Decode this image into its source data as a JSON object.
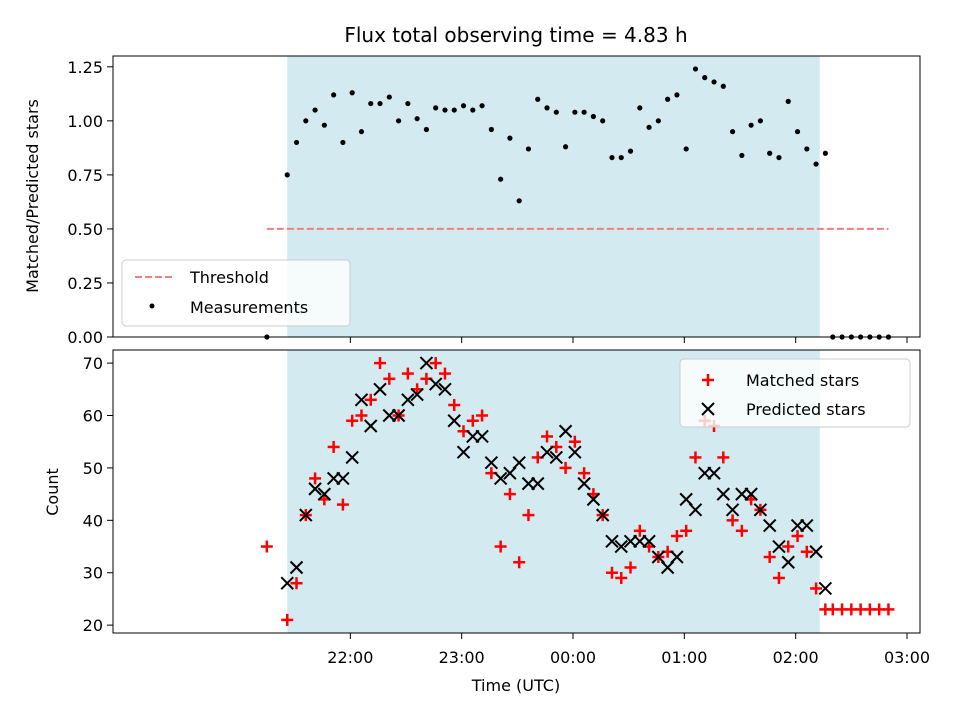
{
  "chart_data": [
    {
      "type": "scatter",
      "title": "Flux total observing time = 4.83 h",
      "ylabel": "Matched/Predicted stars",
      "xlabel": "",
      "ylim": [
        0,
        1.3
      ],
      "yticks": [
        "0.00",
        "0.25",
        "0.50",
        "0.75",
        "1.00",
        "1.25"
      ],
      "grid": false,
      "legend_position": "lower-left",
      "observing_window": {
        "start": "21:26",
        "end": "02:13",
        "color": "#d3eaf0"
      },
      "threshold": {
        "name": "Threshold",
        "value": 0.5,
        "x_start": "21:15",
        "x_end": "02:50",
        "color": "#f08080"
      },
      "series": [
        {
          "name": "Measurements",
          "color": "#000000",
          "points": [
            [
              "21:15",
              0.0
            ],
            [
              "21:26",
              0.75
            ],
            [
              "21:31",
              0.9
            ],
            [
              "21:36",
              1.0
            ],
            [
              "21:41",
              1.05
            ],
            [
              "21:46",
              0.98
            ],
            [
              "21:51",
              1.12
            ],
            [
              "21:56",
              0.9
            ],
            [
              "22:01",
              1.13
            ],
            [
              "22:06",
              0.95
            ],
            [
              "22:11",
              1.08
            ],
            [
              "22:16",
              1.08
            ],
            [
              "22:21",
              1.11
            ],
            [
              "22:26",
              1.0
            ],
            [
              "22:31",
              1.08
            ],
            [
              "22:36",
              1.01
            ],
            [
              "22:41",
              0.96
            ],
            [
              "22:46",
              1.06
            ],
            [
              "22:51",
              1.05
            ],
            [
              "22:56",
              1.05
            ],
            [
              "23:01",
              1.07
            ],
            [
              "23:06",
              1.05
            ],
            [
              "23:11",
              1.07
            ],
            [
              "23:16",
              0.96
            ],
            [
              "23:21",
              0.73
            ],
            [
              "23:26",
              0.92
            ],
            [
              "23:31",
              0.63
            ],
            [
              "23:36",
              0.87
            ],
            [
              "23:41",
              1.1
            ],
            [
              "23:46",
              1.06
            ],
            [
              "23:51",
              1.04
            ],
            [
              "23:56",
              0.88
            ],
            [
              "00:01",
              1.04
            ],
            [
              "00:06",
              1.04
            ],
            [
              "00:11",
              1.02
            ],
            [
              "00:16",
              1.0
            ],
            [
              "00:21",
              0.83
            ],
            [
              "00:26",
              0.83
            ],
            [
              "00:31",
              0.86
            ],
            [
              "00:36",
              1.06
            ],
            [
              "00:41",
              0.97
            ],
            [
              "00:46",
              1.0
            ],
            [
              "00:51",
              1.1
            ],
            [
              "00:56",
              1.12
            ],
            [
              "01:01",
              0.87
            ],
            [
              "01:06",
              1.24
            ],
            [
              "01:11",
              1.2
            ],
            [
              "01:16",
              1.18
            ],
            [
              "01:21",
              1.16
            ],
            [
              "01:26",
              0.95
            ],
            [
              "01:31",
              0.84
            ],
            [
              "01:36",
              0.98
            ],
            [
              "01:41",
              1.0
            ],
            [
              "01:46",
              0.85
            ],
            [
              "01:51",
              0.83
            ],
            [
              "01:56",
              1.09
            ],
            [
              "02:01",
              0.95
            ],
            [
              "02:06",
              0.87
            ],
            [
              "02:11",
              0.8
            ],
            [
              "02:16",
              0.85
            ],
            [
              "02:20",
              0.0
            ],
            [
              "02:25",
              0.0
            ],
            [
              "02:30",
              0.0
            ],
            [
              "02:35",
              0.0
            ],
            [
              "02:40",
              0.0
            ],
            [
              "02:45",
              0.0
            ],
            [
              "02:50",
              0.0
            ]
          ]
        }
      ]
    },
    {
      "type": "scatter",
      "title": "",
      "xlabel": "Time (UTC)",
      "ylabel": "Count",
      "ylim": [
        18.5,
        72.5
      ],
      "yticks": [
        "20",
        "30",
        "40",
        "50",
        "60",
        "70"
      ],
      "xticks": [
        "22:00",
        "23:00",
        "00:00",
        "01:00",
        "02:00",
        "03:00"
      ],
      "grid": false,
      "legend_position": "upper-right",
      "series": [
        {
          "name": "Matched stars",
          "marker": "plus",
          "color": "#ff0000",
          "points": [
            [
              "21:15",
              35
            ],
            [
              "21:26",
              21
            ],
            [
              "21:31",
              28
            ],
            [
              "21:36",
              41
            ],
            [
              "21:41",
              48
            ],
            [
              "21:46",
              44
            ],
            [
              "21:51",
              54
            ],
            [
              "21:56",
              43
            ],
            [
              "22:01",
              59
            ],
            [
              "22:06",
              60
            ],
            [
              "22:11",
              63
            ],
            [
              "22:16",
              70
            ],
            [
              "22:21",
              67
            ],
            [
              "22:26",
              60
            ],
            [
              "22:31",
              68
            ],
            [
              "22:36",
              65
            ],
            [
              "22:41",
              67
            ],
            [
              "22:46",
              70
            ],
            [
              "22:51",
              68
            ],
            [
              "22:56",
              62
            ],
            [
              "23:01",
              57
            ],
            [
              "23:06",
              59
            ],
            [
              "23:11",
              60
            ],
            [
              "23:16",
              49
            ],
            [
              "23:21",
              35
            ],
            [
              "23:26",
              45
            ],
            [
              "23:31",
              32
            ],
            [
              "23:36",
              41
            ],
            [
              "23:41",
              52
            ],
            [
              "23:46",
              56
            ],
            [
              "23:51",
              54
            ],
            [
              "23:56",
              50
            ],
            [
              "00:01",
              55
            ],
            [
              "00:06",
              49
            ],
            [
              "00:11",
              45
            ],
            [
              "00:16",
              41
            ],
            [
              "00:21",
              30
            ],
            [
              "00:26",
              29
            ],
            [
              "00:31",
              31
            ],
            [
              "00:36",
              38
            ],
            [
              "00:41",
              35
            ],
            [
              "00:46",
              33
            ],
            [
              "00:51",
              34
            ],
            [
              "00:56",
              37
            ],
            [
              "01:01",
              38
            ],
            [
              "01:06",
              52
            ],
            [
              "01:11",
              59
            ],
            [
              "01:16",
              58
            ],
            [
              "01:21",
              52
            ],
            [
              "01:26",
              40
            ],
            [
              "01:31",
              38
            ],
            [
              "01:36",
              44
            ],
            [
              "01:41",
              42
            ],
            [
              "01:46",
              33
            ],
            [
              "01:51",
              29
            ],
            [
              "01:56",
              35
            ],
            [
              "02:01",
              37
            ],
            [
              "02:06",
              34
            ],
            [
              "02:11",
              27
            ],
            [
              "02:16",
              23
            ],
            [
              "02:20",
              23
            ],
            [
              "02:25",
              23
            ],
            [
              "02:30",
              23
            ],
            [
              "02:35",
              23
            ],
            [
              "02:40",
              23
            ],
            [
              "02:45",
              23
            ],
            [
              "02:50",
              23
            ]
          ]
        },
        {
          "name": "Predicted stars",
          "marker": "x",
          "color": "#000000",
          "points": [
            [
              "21:26",
              28
            ],
            [
              "21:31",
              31
            ],
            [
              "21:36",
              41
            ],
            [
              "21:41",
              46
            ],
            [
              "21:46",
              45
            ],
            [
              "21:51",
              48
            ],
            [
              "21:56",
              48
            ],
            [
              "22:01",
              52
            ],
            [
              "22:06",
              63
            ],
            [
              "22:11",
              58
            ],
            [
              "22:16",
              65
            ],
            [
              "22:21",
              60
            ],
            [
              "22:26",
              60
            ],
            [
              "22:31",
              63
            ],
            [
              "22:36",
              64
            ],
            [
              "22:41",
              70
            ],
            [
              "22:46",
              66
            ],
            [
              "22:51",
              65
            ],
            [
              "22:56",
              59
            ],
            [
              "23:01",
              53
            ],
            [
              "23:06",
              56
            ],
            [
              "23:11",
              56
            ],
            [
              "23:16",
              51
            ],
            [
              "23:21",
              48
            ],
            [
              "23:26",
              49
            ],
            [
              "23:31",
              51
            ],
            [
              "23:36",
              47
            ],
            [
              "23:41",
              47
            ],
            [
              "23:46",
              53
            ],
            [
              "23:51",
              52
            ],
            [
              "23:56",
              57
            ],
            [
              "00:01",
              53
            ],
            [
              "00:06",
              47
            ],
            [
              "00:11",
              44
            ],
            [
              "00:16",
              41
            ],
            [
              "00:21",
              36
            ],
            [
              "00:26",
              35
            ],
            [
              "00:31",
              36
            ],
            [
              "00:36",
              36
            ],
            [
              "00:41",
              36
            ],
            [
              "00:46",
              33
            ],
            [
              "00:51",
              31
            ],
            [
              "00:56",
              33
            ],
            [
              "01:01",
              44
            ],
            [
              "01:06",
              42
            ],
            [
              "01:11",
              49
            ],
            [
              "01:16",
              49
            ],
            [
              "01:21",
              45
            ],
            [
              "01:26",
              42
            ],
            [
              "01:31",
              45
            ],
            [
              "01:36",
              45
            ],
            [
              "01:41",
              42
            ],
            [
              "01:46",
              39
            ],
            [
              "01:51",
              35
            ],
            [
              "01:56",
              32
            ],
            [
              "02:01",
              39
            ],
            [
              "02:06",
              39
            ],
            [
              "02:11",
              34
            ],
            [
              "02:16",
              27
            ]
          ]
        }
      ]
    }
  ]
}
